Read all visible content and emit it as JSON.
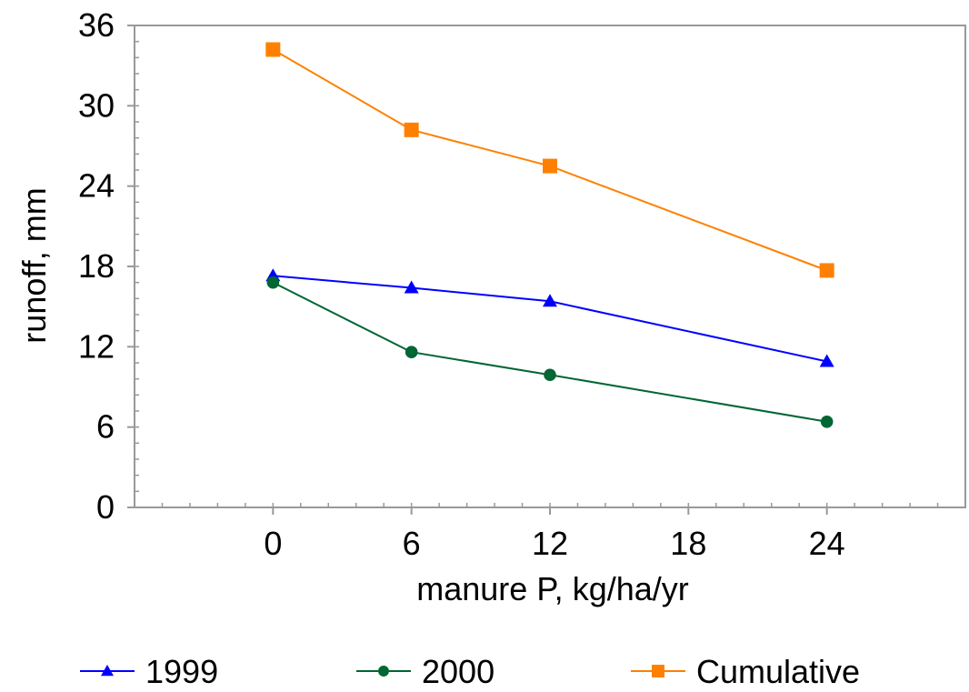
{
  "chart_data": {
    "type": "line",
    "xlabel": "manure P, kg/ha/yr",
    "ylabel": "runoff, mm",
    "xlim": [
      -6,
      30
    ],
    "ylim": [
      0,
      36
    ],
    "x_ticks": [
      "0",
      "6",
      "12",
      "18",
      "24"
    ],
    "x_tick_values": [
      0,
      6,
      12,
      18,
      24
    ],
    "y_ticks": [
      "0",
      "6",
      "12",
      "18",
      "24",
      "30",
      "36"
    ],
    "y_tick_values": [
      0,
      6,
      12,
      18,
      24,
      30,
      36
    ],
    "grid": false,
    "legend_position": "bottom",
    "series": [
      {
        "name": "1999",
        "x": [
          0,
          6,
          12,
          24
        ],
        "values": [
          17.3,
          16.4,
          15.4,
          10.9
        ],
        "color": "#0000ff",
        "marker": "triangle"
      },
      {
        "name": "2000",
        "x": [
          0,
          6,
          12,
          24
        ],
        "values": [
          16.8,
          11.6,
          9.9,
          6.4
        ],
        "color": "#006633",
        "marker": "circle"
      },
      {
        "name": "Cumulative",
        "x": [
          0,
          6,
          12,
          24
        ],
        "values": [
          34.2,
          28.2,
          25.5,
          17.7
        ],
        "color": "#ff8000",
        "marker": "square"
      }
    ]
  }
}
